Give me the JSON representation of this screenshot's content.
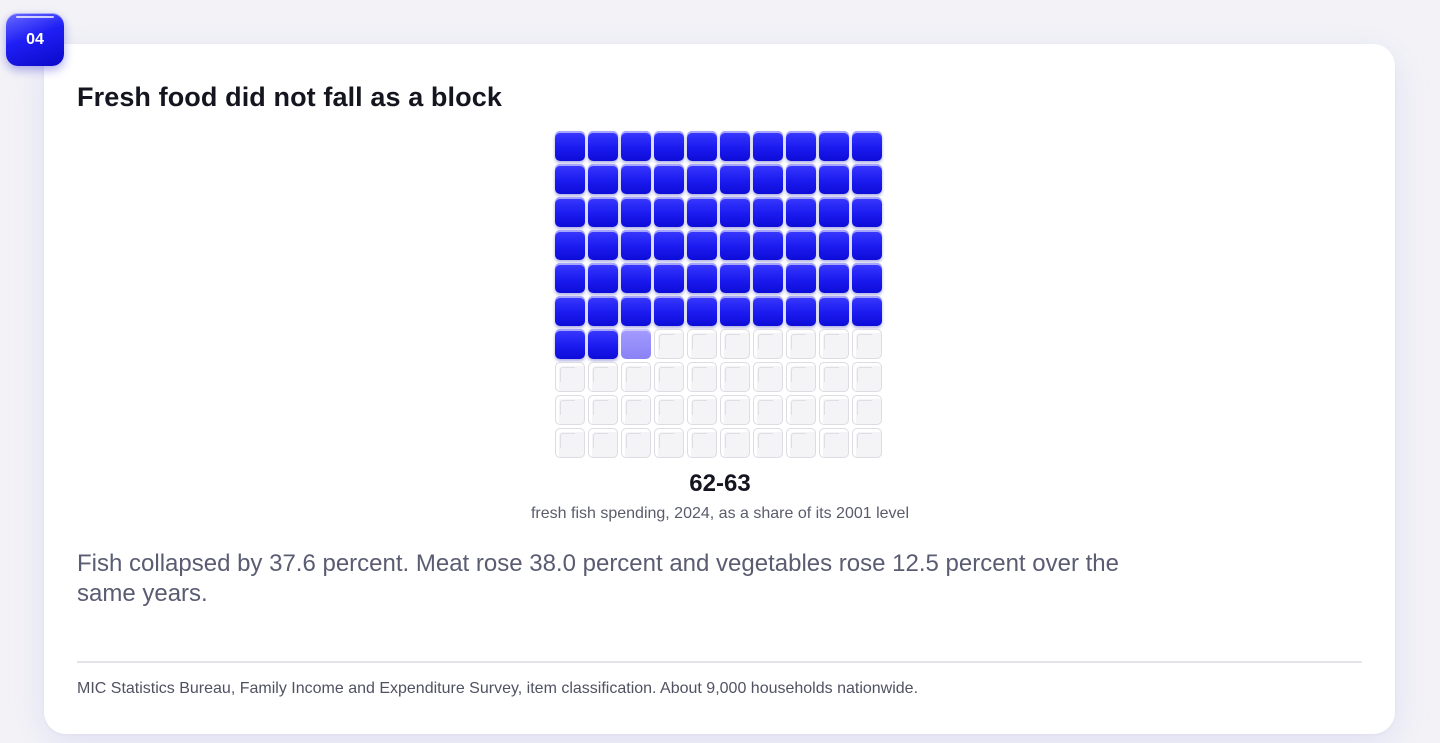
{
  "badge": {
    "number": "04"
  },
  "title": "Fresh food did not fall as a block",
  "headline_value": "62-63",
  "headline_caption": "fresh fish spending, 2024, as a share of its 2001 level",
  "body": "Fish collapsed by 37.6 percent. Meat rose 38.0 percent and vegetables rose 12.5 percent over the same years.",
  "source": "MIC Statistics Bureau, Family Income and Expenditure Survey, item classification. About 9,000 households nationwide.",
  "colors": {
    "filled": "#1b1bf0",
    "partial": "#8a82f5",
    "empty": "#f4f4f6"
  },
  "chart_data": {
    "type": "waffle",
    "rows": 10,
    "cols": 10,
    "total": 100,
    "value": 62.4,
    "filled_cells": 62,
    "partial_cell_fraction": 0.4,
    "fill_order": "row-major from top-left"
  }
}
